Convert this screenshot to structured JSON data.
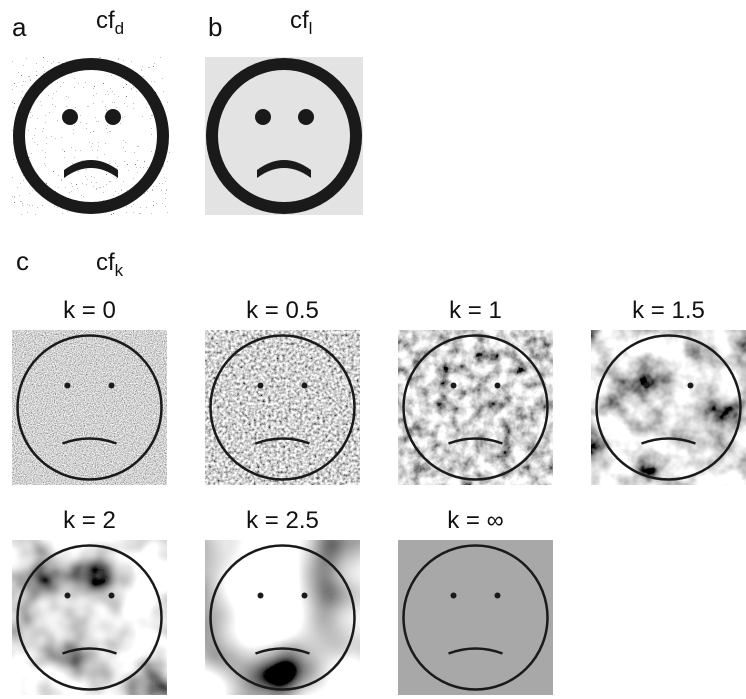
{
  "panels": [
    {
      "label": "a",
      "title": "cf",
      "subscript": "d"
    },
    {
      "label": "b",
      "title": "cf",
      "subscript": "l"
    },
    {
      "label": "c",
      "title": "cf",
      "subscript": "k",
      "images": [
        "k = 0",
        "k = 0.5",
        "k = 1",
        "k = 1.5",
        "k = 2",
        "k = 2.5",
        "k = ∞"
      ]
    }
  ]
}
